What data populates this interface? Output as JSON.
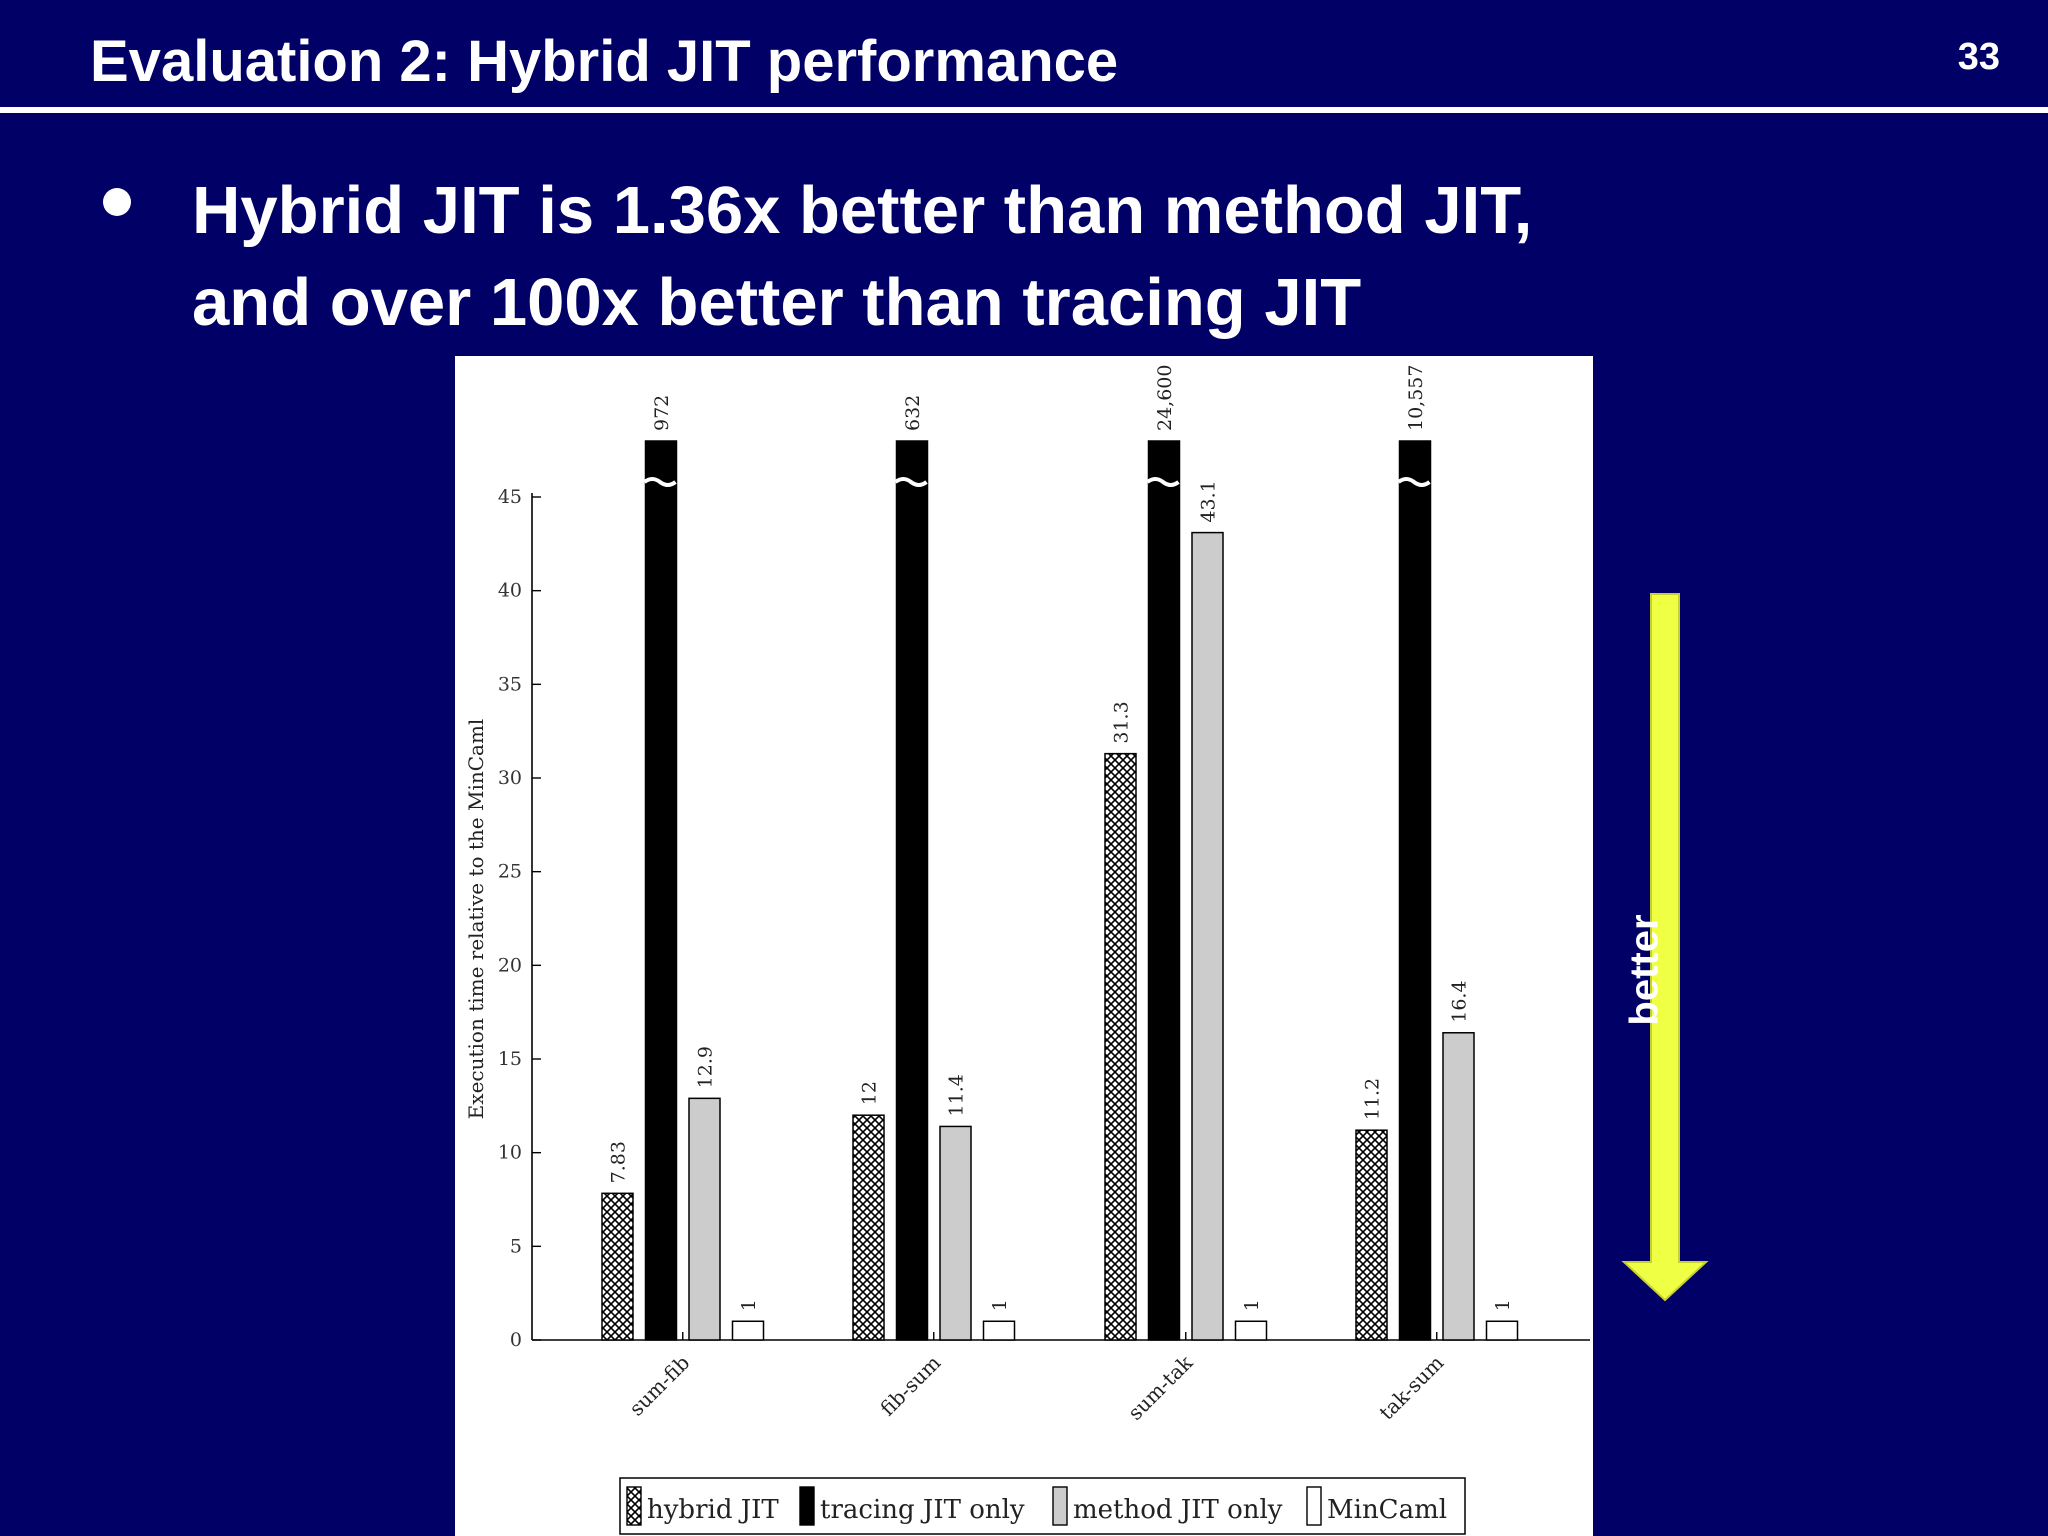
{
  "slide": {
    "title": "Evaluation 2: Hybrid JIT performance",
    "page_number": "33",
    "bullets": [
      {
        "line1": "Hybrid JIT is 1.36x better than method JIT,",
        "line2": "and over 100x better than tracing JIT"
      }
    ],
    "side_arrow_label": "better",
    "colors": {
      "background": "#000066",
      "text": "#ffffff",
      "arrow": "#eeff44"
    }
  },
  "chart_data": {
    "type": "bar",
    "ylabel": "Execution time relative to the MinCaml",
    "ylim": [
      0,
      45
    ],
    "yticks": [
      0,
      5,
      10,
      15,
      20,
      25,
      30,
      35,
      40,
      45
    ],
    "axis_break_above": 45,
    "categories": [
      "sum-fib",
      "fib-sum",
      "sum-tak",
      "tak-sum"
    ],
    "series": [
      {
        "name": "hybrid JIT",
        "fill": "crosshatch",
        "values": [
          7.83,
          12,
          31.3,
          11.2
        ],
        "labels": [
          "7.83",
          "12",
          "31.3",
          "11.2"
        ]
      },
      {
        "name": "tracing JIT only",
        "fill": "#000000",
        "values": [
          972,
          632,
          24600,
          10557
        ],
        "labels": [
          "972",
          "632",
          "24,600",
          "10,557"
        ]
      },
      {
        "name": "method JIT only",
        "fill": "#cccccc",
        "values": [
          12.9,
          11.4,
          43.1,
          16.4
        ],
        "labels": [
          "12.9",
          "11.4",
          "43.1",
          "16.4"
        ]
      },
      {
        "name": "MinCaml",
        "fill": "#ffffff",
        "values": [
          1,
          1,
          1,
          1
        ],
        "labels": [
          "1",
          "1",
          "1",
          "1"
        ]
      }
    ],
    "legend": {
      "position": "bottom"
    }
  }
}
